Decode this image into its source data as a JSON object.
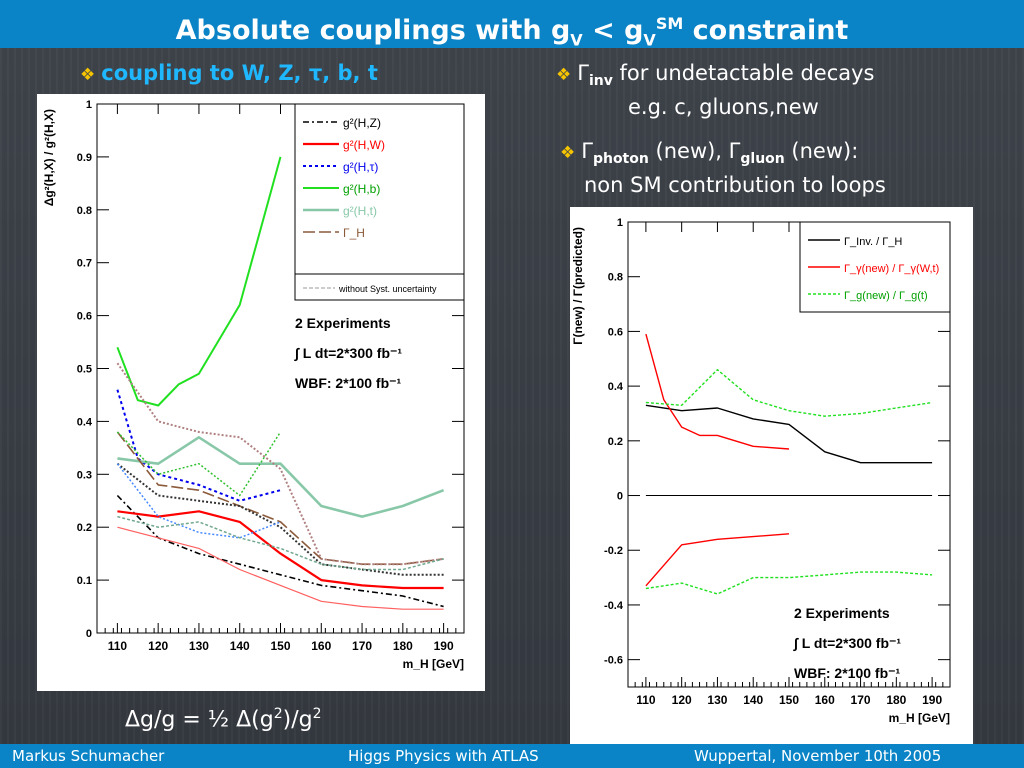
{
  "header": {
    "title_main": "Absolute couplings with g",
    "title_sub1": "V",
    "title_lt": " < g",
    "title_sub2": "V",
    "title_sup": "SM",
    "title_end": " constraint"
  },
  "left_heading": {
    "bullet": "❖",
    "text": "coupling to W, Z, τ, b, t"
  },
  "right_text": {
    "bullet": "❖",
    "line1_symbol": "Γ",
    "line1_sub": "inv",
    "line1_text": " for undetactable decays",
    "line2": "e.g. c, gluons,new",
    "line3_g1": "Γ",
    "line3_sub1": "photon",
    "line3_mid": " (new), ",
    "line3_g2": "Γ",
    "line3_sub2": "gluon",
    "line3_end": " (new):",
    "line4": "non SM contribution to loops"
  },
  "formula": {
    "text": "Δg/g = ½ Δ(g",
    "sup1": "2",
    "mid": ")/g",
    "sup2": "2"
  },
  "footer": {
    "author": "Markus  Schumacher",
    "talk": "Higgs Physics  with ATLAS",
    "place_date": "Wuppertal, November 10th 2005"
  },
  "colors": {
    "bar": "#0a84c6",
    "accent": "#1fb8ff",
    "bullet": "#f6c400"
  },
  "chart_data": [
    {
      "type": "line",
      "ylabel": "Δg²(H,X) / g²(H,X)",
      "xlabel": "m_H [GeV]",
      "xlim": [
        105,
        195
      ],
      "ylim": [
        0,
        1
      ],
      "xticks": [
        "110",
        "120",
        "130",
        "140",
        "150",
        "160",
        "170",
        "180",
        "190"
      ],
      "yticks": [
        "0",
        "0.1",
        "0.2",
        "0.3",
        "0.4",
        "0.5",
        "0.6",
        "0.7",
        "0.8",
        "0.9",
        "1"
      ],
      "legend_entries": [
        "g²(H,Z)",
        "g²(H,W)",
        "g²(H,τ)",
        "g²(H,b)",
        "g²(H,t)",
        "Γ_H"
      ],
      "legend_note": "without Syst. uncertainty",
      "annotation": [
        "2 Experiments",
        "∫ L dt=2*300 fb⁻¹",
        "WBF: 2*100 fb⁻¹"
      ],
      "series": [
        {
          "name": "g²(H,Z)",
          "color": "#000000",
          "dash": "6,3,2,3",
          "width": 1.6,
          "x": [
            110,
            120,
            130,
            140,
            150,
            160,
            170,
            180,
            190
          ],
          "y": [
            0.26,
            0.18,
            0.15,
            0.13,
            0.11,
            0.09,
            0.08,
            0.07,
            0.05
          ]
        },
        {
          "name": "g²(H,W)",
          "color": "#ff0000",
          "dash": "",
          "width": 2.2,
          "x": [
            110,
            120,
            130,
            140,
            150,
            160,
            170,
            180,
            190
          ],
          "y": [
            0.23,
            0.22,
            0.23,
            0.21,
            0.15,
            0.1,
            0.09,
            0.085,
            0.085
          ]
        },
        {
          "name": "g²(H,τ)",
          "color": "#0000ee",
          "dash": "3,3",
          "width": 2,
          "x": [
            110,
            115,
            120,
            130,
            140,
            150
          ],
          "y": [
            0.46,
            0.33,
            0.3,
            0.28,
            0.25,
            0.27
          ]
        },
        {
          "name": "g²(H,b)",
          "color": "#20e020",
          "dash": "",
          "width": 2,
          "x": [
            110,
            115,
            120,
            125,
            130,
            140,
            150
          ],
          "y": [
            0.54,
            0.44,
            0.43,
            0.47,
            0.49,
            0.62,
            0.9
          ]
        },
        {
          "name": "g²(H,t)",
          "color": "#88c8a8",
          "dash": "",
          "width": 2.6,
          "x": [
            110,
            120,
            130,
            140,
            150,
            160,
            170,
            180,
            190
          ],
          "y": [
            0.33,
            0.32,
            0.37,
            0.32,
            0.32,
            0.24,
            0.22,
            0.24,
            0.27
          ]
        },
        {
          "name": "Γ_H",
          "color": "#8b5a3a",
          "dash": "12,4",
          "width": 1.6,
          "x": [
            110,
            120,
            130,
            140,
            150,
            160,
            170,
            180,
            190
          ],
          "y": [
            0.38,
            0.28,
            0.27,
            0.24,
            0.21,
            0.14,
            0.13,
            0.13,
            0.14
          ]
        },
        {
          "name": "",
          "color": "#b08080",
          "dash": "2,2",
          "width": 2,
          "x": [
            110,
            120,
            130,
            140,
            150,
            160,
            170,
            180,
            190
          ],
          "y": [
            0.51,
            0.4,
            0.38,
            0.37,
            0.31,
            0.14,
            0.13,
            0.13,
            0.14
          ]
        },
        {
          "name": "",
          "color": "#333333",
          "dash": "2,2",
          "width": 2,
          "x": [
            110,
            120,
            130,
            140,
            150,
            160,
            170,
            180,
            190
          ],
          "y": [
            0.32,
            0.26,
            0.25,
            0.24,
            0.2,
            0.13,
            0.12,
            0.11,
            0.11
          ]
        },
        {
          "name": "",
          "color": "#ff6060",
          "dash": "",
          "width": 1.2,
          "x": [
            110,
            120,
            130,
            140,
            150,
            160,
            170,
            180,
            190
          ],
          "y": [
            0.2,
            0.18,
            0.16,
            0.12,
            0.09,
            0.06,
            0.05,
            0.045,
            0.045
          ]
        },
        {
          "name": "",
          "color": "#4488ff",
          "dash": "2,2",
          "width": 1.5,
          "x": [
            110,
            120,
            130,
            140,
            150
          ],
          "y": [
            0.32,
            0.22,
            0.19,
            0.18,
            0.21
          ]
        },
        {
          "name": "",
          "color": "#30c030",
          "dash": "2,2",
          "width": 1.5,
          "x": [
            110,
            120,
            130,
            140,
            150
          ],
          "y": [
            0.38,
            0.3,
            0.32,
            0.26,
            0.38
          ]
        },
        {
          "name": "",
          "color": "#70a890",
          "dash": "3,2",
          "width": 1.5,
          "x": [
            110,
            120,
            130,
            140,
            150,
            160,
            170,
            180,
            190
          ],
          "y": [
            0.22,
            0.2,
            0.21,
            0.18,
            0.16,
            0.13,
            0.12,
            0.12,
            0.14
          ]
        }
      ]
    },
    {
      "type": "line",
      "ylabel": "Γ(new) / Γ(predicted)",
      "xlabel": "m_H [GeV]",
      "xlim": [
        105,
        195
      ],
      "ylim": [
        -0.7,
        1
      ],
      "xticks": [
        "110",
        "120",
        "130",
        "140",
        "150",
        "160",
        "170",
        "180",
        "190"
      ],
      "yticks": [
        "-0.6",
        "-0.4",
        "-0.2",
        "0",
        "0.2",
        "0.4",
        "0.6",
        "0.8",
        "1"
      ],
      "legend_entries": [
        "Γ_Inv. / Γ_H",
        "Γ_γ(new) / Γ_γ(W,t)",
        "Γ_g(new) / Γ_g(t)"
      ],
      "annotation": [
        "2 Experiments",
        "∫ L dt=2*300 fb⁻¹",
        "WBF: 2*100 fb⁻¹"
      ],
      "series": [
        {
          "name": "Γ_Inv. / Γ_H",
          "color": "#000000",
          "dash": "",
          "width": 1.4,
          "x": [
            110,
            120,
            130,
            140,
            150,
            160,
            170,
            180,
            190
          ],
          "y": [
            0.33,
            0.31,
            0.32,
            0.28,
            0.26,
            0.16,
            0.12,
            0.12,
            0.12
          ]
        },
        {
          "name": "Γ_γ(new) / Γ_γ(W,t)",
          "color": "#ff0000",
          "dash": "",
          "width": 1.4,
          "x": [
            110,
            115,
            120,
            125,
            130,
            140,
            150
          ],
          "y": [
            0.59,
            0.35,
            0.25,
            0.22,
            0.22,
            0.18,
            0.17
          ]
        },
        {
          "name": "Γ_g(new) / Γ_g(t)",
          "color": "#20e020",
          "dash": "3,2",
          "width": 1.4,
          "x": [
            110,
            120,
            130,
            140,
            150,
            160,
            170,
            180,
            190
          ],
          "y": [
            0.34,
            0.33,
            0.46,
            0.35,
            0.31,
            0.29,
            0.3,
            0.32,
            0.34
          ]
        },
        {
          "name": "",
          "color": "#000000",
          "dash": "",
          "width": 1,
          "x": [
            110,
            190
          ],
          "y": [
            0,
            0
          ]
        },
        {
          "name": "",
          "color": "#ff0000",
          "dash": "",
          "width": 1.4,
          "x": [
            110,
            120,
            130,
            140,
            150
          ],
          "y": [
            -0.33,
            -0.18,
            -0.16,
            -0.15,
            -0.14
          ]
        },
        {
          "name": "",
          "color": "#20e020",
          "dash": "3,2",
          "width": 1.4,
          "x": [
            110,
            120,
            130,
            140,
            150,
            160,
            170,
            180,
            190
          ],
          "y": [
            -0.34,
            -0.32,
            -0.36,
            -0.3,
            -0.3,
            -0.29,
            -0.28,
            -0.28,
            -0.29
          ]
        }
      ]
    }
  ]
}
